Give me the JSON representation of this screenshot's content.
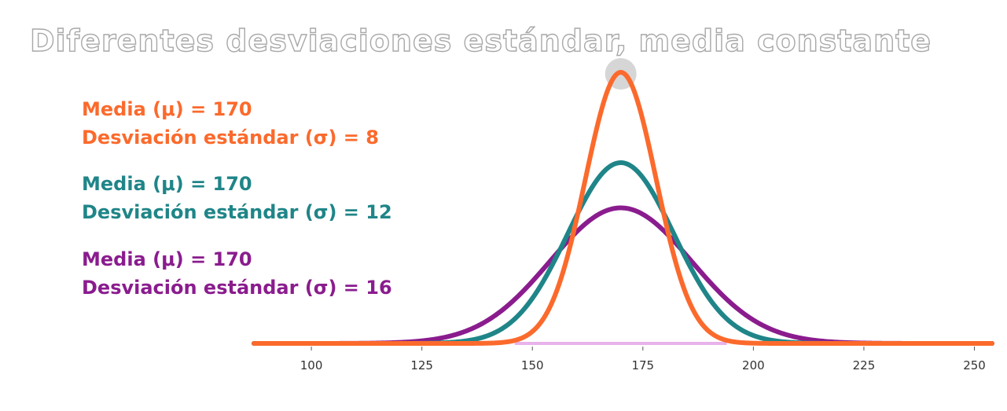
{
  "chart_data": {
    "type": "line",
    "title": "Diferentes desviaciones estándar, media constante",
    "xlabel": "",
    "ylabel": "",
    "xlim": [
      87,
      254
    ],
    "xticks": [
      100,
      125,
      150,
      175,
      200,
      225,
      250
    ],
    "grid": false,
    "legend_position": "left",
    "series": [
      {
        "name": "Desviación estándar (σ) = 8",
        "mean_label": "Media (μ) = 170",
        "sd_label": "Desviación estándar (σ) = 8",
        "mean": 170,
        "sd": 8,
        "color": "#fb6a2c"
      },
      {
        "name": "Desviación estándar (σ) = 12",
        "mean_label": "Media (μ) = 170",
        "sd_label": "Desviación estándar (σ) = 12",
        "mean": 170,
        "sd": 12,
        "color": "#1f8588"
      },
      {
        "name": "Desviación estándar (σ) = 16",
        "mean_label": "Media (μ) = 170",
        "sd_label": "Desviación estándar (σ) = 16",
        "mean": 170,
        "sd": 16,
        "color": "#8a1c8e"
      }
    ],
    "highlight": {
      "description": "peak marker",
      "x": 170,
      "color": "#cfcfcf"
    },
    "baseline_highlight_color": "#e7b3ea"
  }
}
